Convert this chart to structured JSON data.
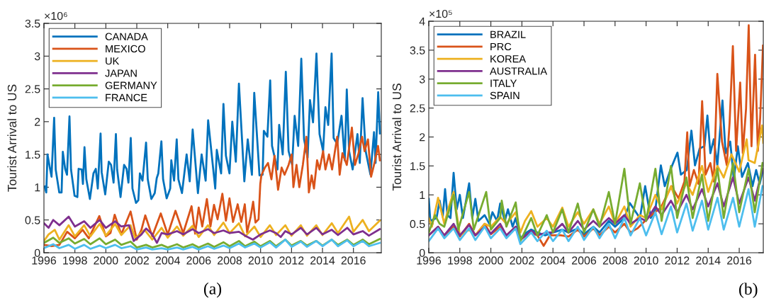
{
  "chart_data": [
    {
      "type": "line",
      "ylabel": "Tourist Arrival to US",
      "annotations": [
        "×10⁶",
        "(a)"
      ],
      "legend": "top left",
      "grid": false,
      "xlim": [
        1996,
        2017.8
      ],
      "xticks": [
        1996,
        1998,
        2000,
        2002,
        2004,
        2006,
        2008,
        2010,
        2012,
        2014,
        2016
      ],
      "ylim": [
        0,
        3.5
      ],
      "yticks": [
        0,
        0.5,
        1,
        1.5,
        2,
        2.5,
        3,
        3.5
      ],
      "series": [
        {
          "name": "CANADA",
          "color": "#0072bd",
          "x": [
            1996.05,
            1996.15,
            1996.23,
            1996.38,
            1996.49,
            1996.66,
            1996.76,
            1996.99,
            1997.14,
            1997.22,
            1997.37,
            1997.49,
            1997.65,
            1997.75,
            1997.98,
            1998.16,
            1998.24,
            1998.44,
            1998.52,
            1998.62,
            1998.74,
            1998.97,
            1999.2,
            1999.35,
            1999.48,
            1999.66,
            1999.73,
            1999.96,
            2000.19,
            2000.34,
            2000.5,
            2000.65,
            2000.73,
            2000.95,
            2001.18,
            2001.34,
            2001.46,
            2001.61,
            2001.72,
            2001.95,
            2002.1,
            2002.2,
            2002.37,
            2002.6,
            2002.71,
            2002.94,
            2003.16,
            2003.29,
            2003.39,
            2003.59,
            2003.7,
            2003.93,
            2004.16,
            2004.23,
            2004.41,
            2004.58,
            2004.69,
            2004.92,
            2005.22,
            2005.42,
            2005.61,
            2005.95,
            2006.19,
            2006.45,
            2006.61,
            2007.07,
            2007.17,
            2007.45,
            2007.6,
            2007.76,
            2007.99,
            2008.17,
            2008.4,
            2008.6,
            2008.95,
            2009.17,
            2009.44,
            2009.59,
            2009.93,
            2010.13,
            2010.21,
            2010.44,
            2010.62,
            2010.74,
            2011.09,
            2011.2,
            2011.43,
            2011.63,
            2011.81,
            2012.04,
            2012.2,
            2012.43,
            2012.63,
            2012.81,
            2013.04,
            2013.19,
            2013.39,
            2013.61,
            2013.81,
            2014.04,
            2014.19,
            2014.37,
            2014.59,
            2014.72,
            2014.95,
            2015.23,
            2015.44,
            2015.57,
            2015.72,
            2015.95,
            2016.26,
            2016.41,
            2016.59,
            2016.79,
            2017.1,
            2017.33,
            2017.43,
            2017.6,
            2017.71
          ],
          "values": [
            1.01,
            0.92,
            1.5,
            1.3,
            1.16,
            2.06,
            1.27,
            0.92,
            0.92,
            1.54,
            1.28,
            1.19,
            2.08,
            1.27,
            0.87,
            0.85,
            1.28,
            1.27,
            1.05,
            1.61,
            1.12,
            0.82,
            1.21,
            1.28,
            0.98,
            1.82,
            1.23,
            0.89,
            1.39,
            1.34,
            1.07,
            1.81,
            1.27,
            0.85,
            1.34,
            1.28,
            1.07,
            1.75,
            0.98,
            0.76,
            0.8,
            1.21,
            1.1,
            1.68,
            1.12,
            0.82,
            0.91,
            1.14,
            1.21,
            1.7,
            1.12,
            0.83,
            0.98,
            1.41,
            1.1,
            1.73,
            1.12,
            0.91,
            1.5,
            1.09,
            1.88,
            0.91,
            1.5,
            1.1,
            2.02,
            0.98,
            1.57,
            1.21,
            2.27,
            1.48,
            1.21,
            2.0,
            1.39,
            2.58,
            1.09,
            1.73,
            1.19,
            2.44,
            1.18,
            1.19,
            1.86,
            1.77,
            2.63,
            1.63,
            1.27,
            1.95,
            1.5,
            2.76,
            1.55,
            1.34,
            2.09,
            1.63,
            2.96,
            1.73,
            1.45,
            2.33,
            1.99,
            3.04,
            1.81,
            1.55,
            2.22,
            1.95,
            3.04,
            1.75,
            1.66,
            2.09,
            1.41,
            2.49,
            1.55,
            1.27,
            1.81,
            1.37,
            2.36,
            1.55,
            1.19,
            1.84,
            1.37,
            2.45,
            1.82
          ]
        },
        {
          "name": "MEXICO",
          "color": "#d95319",
          "x": [
            1996.0,
            1996.5,
            1997.0,
            1997.5,
            1998.0,
            1998.5,
            1998.9,
            1999.58,
            2000.0,
            2000.3,
            2000.57,
            2001.0,
            2001.6,
            2002.0,
            2002.3,
            2002.55,
            2003.0,
            2003.55,
            2004.0,
            2004.5,
            2005.0,
            2005.54,
            2005.77,
            2006.0,
            2006.23,
            2006.53,
            2006.76,
            2006.99,
            2007.22,
            2007.53,
            2007.76,
            2007.99,
            2008.22,
            2008.52,
            2008.75,
            2008.98,
            2009.13,
            2009.36,
            2009.52,
            2009.67,
            2009.87,
            2009.98,
            2010.05,
            2010.28,
            2010.48,
            2010.7,
            2010.9,
            2011.13,
            2011.36,
            2011.55,
            2011.81,
            2012.01,
            2012.12,
            2012.32,
            2012.5,
            2012.73,
            2012.96,
            2013.12,
            2013.3,
            2013.45,
            2013.65,
            2013.81,
            2014.04,
            2014.19,
            2014.42,
            2014.62,
            2014.95,
            2015.11,
            2015.29,
            2015.57,
            2015.9,
            2016.1,
            2016.33,
            2016.56,
            2016.72,
            2016.94,
            2017.14,
            2017.33,
            2017.59,
            2017.71
          ],
          "values": [
            0.12,
            0.1,
            0.12,
            0.32,
            0.22,
            0.35,
            0.22,
            0.56,
            0.25,
            0.3,
            0.58,
            0.28,
            0.63,
            0.2,
            0.35,
            0.57,
            0.25,
            0.6,
            0.28,
            0.64,
            0.3,
            0.71,
            0.29,
            0.69,
            0.4,
            0.82,
            0.4,
            0.73,
            0.51,
            0.9,
            0.49,
            0.83,
            0.47,
            0.74,
            0.47,
            0.74,
            0.31,
            0.55,
            0.78,
            0.46,
            0.51,
            1.05,
            1.18,
            1.3,
            1.37,
            1.12,
            1.48,
            0.96,
            1.3,
            1.19,
            1.34,
            1.5,
            1.0,
            1.34,
            1.0,
            1.34,
            1.77,
            0.92,
            1.18,
            0.98,
            1.41,
            1.27,
            1.55,
            1.27,
            1.5,
            1.27,
            1.77,
            1.19,
            1.52,
            1.34,
            1.91,
            1.34,
            1.52,
            1.77,
            1.55,
            1.73,
            1.16,
            1.34,
            1.63,
            1.41
          ]
        },
        {
          "name": "UK",
          "color": "#edb120",
          "x": [
            1996.0,
            1996.3,
            1996.7,
            1997.0,
            1997.6,
            1998.0,
            1998.6,
            1999.0,
            1999.6,
            2000.0,
            2000.6,
            2001.0,
            2001.6,
            2001.9,
            2002.5,
            2003.0,
            2003.6,
            2004.0,
            2004.6,
            2005.0,
            2005.6,
            2006.0,
            2006.6,
            2007.0,
            2007.6,
            2008.0,
            2008.6,
            2009.0,
            2009.6,
            2010.0,
            2010.6,
            2011.0,
            2011.6,
            2012.0,
            2012.6,
            2013.0,
            2013.6,
            2014.0,
            2014.6,
            2015.0,
            2015.72,
            2016.0,
            2016.6,
            2017.0,
            2017.7
          ],
          "values": [
            0.18,
            0.28,
            0.35,
            0.2,
            0.42,
            0.25,
            0.42,
            0.25,
            0.44,
            0.26,
            0.44,
            0.27,
            0.42,
            0.22,
            0.35,
            0.2,
            0.38,
            0.23,
            0.4,
            0.26,
            0.41,
            0.24,
            0.42,
            0.27,
            0.46,
            0.3,
            0.45,
            0.25,
            0.4,
            0.24,
            0.42,
            0.27,
            0.42,
            0.26,
            0.42,
            0.26,
            0.42,
            0.27,
            0.45,
            0.3,
            0.55,
            0.32,
            0.5,
            0.33,
            0.49
          ]
        },
        {
          "name": "JAPAN",
          "color": "#7e2f8e",
          "x": [
            1996.0,
            1996.3,
            1996.6,
            1997.0,
            1997.6,
            1998.0,
            1998.6,
            1999.0,
            1999.6,
            2000.0,
            2000.6,
            2001.0,
            2001.5,
            2001.8,
            2002.3,
            2002.6,
            2003.0,
            2003.3,
            2003.6,
            2004.0,
            2004.6,
            2005.0,
            2005.6,
            2006.0,
            2006.6,
            2007.0,
            2007.6,
            2008.0,
            2008.6,
            2009.0,
            2009.5,
            2010.0,
            2010.6,
            2011.0,
            2011.3,
            2011.6,
            2012.0,
            2012.6,
            2013.0,
            2013.6,
            2014.0,
            2014.6,
            2015.0,
            2015.6,
            2016.0,
            2016.6,
            2017.0,
            2017.7
          ],
          "values": [
            0.45,
            0.38,
            0.5,
            0.42,
            0.55,
            0.4,
            0.48,
            0.38,
            0.5,
            0.38,
            0.48,
            0.4,
            0.42,
            0.18,
            0.28,
            0.37,
            0.28,
            0.15,
            0.3,
            0.28,
            0.33,
            0.28,
            0.36,
            0.3,
            0.36,
            0.3,
            0.34,
            0.3,
            0.32,
            0.26,
            0.2,
            0.28,
            0.34,
            0.3,
            0.24,
            0.33,
            0.28,
            0.38,
            0.28,
            0.38,
            0.28,
            0.35,
            0.27,
            0.38,
            0.28,
            0.33,
            0.26,
            0.36
          ]
        },
        {
          "name": "GERMANY",
          "color": "#77ac30",
          "x": [
            1996.0,
            1996.6,
            1997.0,
            1997.6,
            1998.0,
            1998.6,
            1999.0,
            1999.6,
            2000.0,
            2000.6,
            2001.0,
            2001.6,
            2002.0,
            2002.6,
            2003.0,
            2003.6,
            2004.0,
            2004.6,
            2005.0,
            2005.6,
            2006.0,
            2006.6,
            2007.0,
            2007.6,
            2008.0,
            2008.6,
            2009.0,
            2009.6,
            2010.0,
            2010.6,
            2011.0,
            2011.6,
            2012.0,
            2012.6,
            2013.0,
            2013.6,
            2014.0,
            2014.6,
            2015.0,
            2015.6,
            2016.0,
            2016.6,
            2017.0,
            2017.7
          ],
          "values": [
            0.15,
            0.23,
            0.15,
            0.22,
            0.14,
            0.21,
            0.13,
            0.22,
            0.13,
            0.2,
            0.12,
            0.17,
            0.08,
            0.12,
            0.08,
            0.12,
            0.08,
            0.13,
            0.08,
            0.13,
            0.08,
            0.14,
            0.09,
            0.16,
            0.1,
            0.18,
            0.1,
            0.17,
            0.1,
            0.18,
            0.1,
            0.2,
            0.11,
            0.18,
            0.11,
            0.18,
            0.11,
            0.2,
            0.12,
            0.2,
            0.12,
            0.2,
            0.13,
            0.21
          ]
        },
        {
          "name": "FRANCE",
          "color": "#4dbeee",
          "x": [
            1996.0,
            1996.6,
            1997.0,
            1997.6,
            1998.0,
            1998.6,
            1999.0,
            1999.6,
            2000.0,
            2000.6,
            2001.0,
            2001.6,
            2002.0,
            2002.6,
            2003.0,
            2003.6,
            2004.0,
            2004.6,
            2005.0,
            2005.6,
            2006.0,
            2006.6,
            2007.0,
            2007.6,
            2008.0,
            2008.6,
            2009.0,
            2009.6,
            2010.0,
            2010.6,
            2011.0,
            2011.6,
            2012.0,
            2012.6,
            2013.0,
            2013.6,
            2014.0,
            2014.6,
            2015.0,
            2015.6,
            2016.0,
            2016.6,
            2017.0,
            2017.7
          ],
          "values": [
            0.07,
            0.13,
            0.07,
            0.12,
            0.06,
            0.12,
            0.06,
            0.11,
            0.07,
            0.12,
            0.07,
            0.1,
            0.05,
            0.08,
            0.05,
            0.07,
            0.05,
            0.08,
            0.05,
            0.09,
            0.05,
            0.1,
            0.06,
            0.11,
            0.07,
            0.14,
            0.08,
            0.14,
            0.08,
            0.16,
            0.08,
            0.2,
            0.09,
            0.17,
            0.09,
            0.18,
            0.1,
            0.2,
            0.1,
            0.19,
            0.1,
            0.18,
            0.1,
            0.15
          ]
        }
      ]
    },
    {
      "type": "line",
      "ylabel": "Tourist Arrival to US",
      "annotations": [
        "×10⁵",
        "(b)"
      ],
      "legend": "top left",
      "grid": false,
      "xlim": [
        1996,
        2017.55
      ],
      "xticks": [
        1996,
        1998,
        2000,
        2002,
        2004,
        2006,
        2008,
        2010,
        2012,
        2014,
        2016
      ],
      "ylim": [
        0,
        4
      ],
      "yticks": [
        0,
        0.5,
        1,
        1.5,
        2,
        2.5,
        3,
        3.5,
        4
      ],
      "series": [
        {
          "name": "BRAZIL",
          "color": "#0072bd",
          "x": [
            1996.0,
            1996.1,
            1996.5,
            1996.7,
            1996.9,
            1997.05,
            1997.2,
            1997.4,
            1997.6,
            1997.8,
            1998.0,
            1998.2,
            1998.6,
            1998.8,
            1999.0,
            1999.2,
            1999.6,
            1999.9,
            2000.1,
            2000.4,
            2000.6,
            2000.9,
            2001.1,
            2001.4,
            2001.6,
            2001.9,
            2002.3,
            2002.6,
            2003.0,
            2003.5,
            2004.0,
            2004.6,
            2005.0,
            2005.6,
            2006.0,
            2006.6,
            2007.0,
            2007.6,
            2008.0,
            2008.6,
            2008.95,
            2009.6,
            2009.94,
            2010.3,
            2010.6,
            2010.95,
            2011.2,
            2011.56,
            2012.02,
            2012.24,
            2012.62,
            2012.92,
            2013.15,
            2013.45,
            2013.76,
            2013.95,
            2014.14,
            2014.36,
            2014.59,
            2014.92,
            2015.12,
            2015.42,
            2015.65,
            2015.91,
            2016.18,
            2016.56,
            2016.86,
            2017.09,
            2017.32,
            2017.53
          ],
          "values": [
            0.93,
            0.55,
            0.6,
            0.9,
            0.62,
            1.1,
            0.65,
            0.6,
            1.38,
            0.75,
            1.0,
            0.6,
            1.2,
            0.6,
            0.93,
            0.55,
            0.65,
            0.5,
            0.7,
            0.55,
            0.85,
            0.55,
            0.75,
            0.45,
            0.6,
            0.25,
            0.35,
            0.4,
            0.35,
            0.3,
            0.35,
            0.4,
            0.35,
            0.42,
            0.32,
            0.45,
            0.35,
            0.55,
            0.45,
            0.6,
            0.86,
            0.6,
            1.15,
            0.6,
            0.75,
            1.51,
            1.15,
            1.43,
            1.73,
            1.35,
            1.43,
            2.11,
            1.51,
            1.8,
            1.84,
            2.37,
            1.72,
            1.96,
            1.51,
            2.63,
            1.72,
            1.92,
            1.27,
            1.84,
            1.31,
            1.55,
            1.15,
            1.43,
            1.19,
            1.43
          ]
        },
        {
          "name": "PRC",
          "color": "#d95319",
          "x": [
            1996.0,
            1996.6,
            1997.0,
            1997.6,
            1998.0,
            1998.6,
            1999.0,
            1999.6,
            2000.0,
            2000.6,
            2001.0,
            2001.6,
            2001.9,
            2002.5,
            2003.0,
            2003.4,
            2003.8,
            2004.5,
            2005.0,
            2005.6,
            2006.0,
            2006.6,
            2007.0,
            2007.6,
            2008.0,
            2008.6,
            2009.0,
            2009.44,
            2010.2,
            2010.95,
            2011.64,
            2012.09,
            2012.47,
            2012.65,
            2012.8,
            2013.08,
            2013.38,
            2013.61,
            2013.83,
            2014.14,
            2014.36,
            2014.59,
            2014.89,
            2015.2,
            2015.38,
            2015.59,
            2015.8,
            2016.06,
            2016.23,
            2016.44,
            2016.61,
            2016.79,
            2017.02,
            2017.2,
            2017.35,
            2017.53
          ],
          "values": [
            0.3,
            0.45,
            0.3,
            0.45,
            0.28,
            0.5,
            0.3,
            0.5,
            0.32,
            0.45,
            0.3,
            0.45,
            0.22,
            0.35,
            0.3,
            0.12,
            0.3,
            0.3,
            0.28,
            0.4,
            0.28,
            0.42,
            0.3,
            0.45,
            0.35,
            0.5,
            0.35,
            0.42,
            0.62,
            0.78,
            1.15,
            0.94,
            1.23,
            2.08,
            1.15,
            1.43,
            1.19,
            2.62,
            1.35,
            1.55,
            1.23,
            3.09,
            1.92,
            1.51,
            2.25,
            3.57,
            1.76,
            2.94,
            1.72,
            2.49,
            3.93,
            1.84,
            3.42,
            1.76,
            2.33,
            3.58
          ]
        },
        {
          "name": "KOREA",
          "color": "#edb120",
          "x": [
            1996.0,
            1996.2,
            1996.6,
            1997.0,
            1997.3,
            1997.6,
            1998.0,
            1998.6,
            1999.0,
            1999.6,
            2000.0,
            2000.6,
            2001.0,
            2001.6,
            2001.9,
            2002.2,
            2002.6,
            2003.0,
            2003.6,
            2004.0,
            2004.6,
            2005.0,
            2005.6,
            2006.0,
            2006.6,
            2007.0,
            2007.6,
            2008.0,
            2008.6,
            2009.0,
            2009.6,
            2010.0,
            2010.6,
            2011.0,
            2011.6,
            2012.0,
            2012.6,
            2013.0,
            2013.6,
            2014.0,
            2014.6,
            2015.0,
            2015.5,
            2016.0,
            2016.48,
            2016.6,
            2017.0,
            2017.47,
            2017.55
          ],
          "values": [
            0.6,
            0.45,
            0.95,
            0.5,
            0.8,
            1.05,
            0.3,
            0.4,
            0.3,
            0.5,
            0.45,
            0.62,
            0.5,
            0.7,
            0.35,
            0.55,
            0.72,
            0.45,
            0.6,
            0.45,
            0.78,
            0.45,
            0.7,
            0.5,
            0.75,
            0.5,
            0.8,
            0.5,
            0.8,
            0.45,
            0.65,
            0.6,
            1.0,
            0.75,
            1.15,
            0.85,
            1.2,
            1.0,
            1.5,
            1.05,
            1.5,
            1.3,
            1.7,
            1.4,
            1.96,
            1.6,
            1.55,
            2.2,
            1.9
          ]
        },
        {
          "name": "AUSTRALIA",
          "color": "#7e2f8e",
          "x": [
            1996.0,
            1996.6,
            1997.0,
            1997.6,
            1998.0,
            1998.6,
            1999.0,
            1999.6,
            2000.0,
            2000.6,
            2001.0,
            2001.6,
            2001.9,
            2002.6,
            2003.0,
            2003.6,
            2004.0,
            2004.6,
            2005.0,
            2005.6,
            2006.0,
            2006.6,
            2007.0,
            2007.6,
            2008.0,
            2008.6,
            2009.0,
            2009.6,
            2010.0,
            2010.6,
            2011.0,
            2011.6,
            2012.0,
            2012.6,
            2013.0,
            2013.6,
            2014.0,
            2014.6,
            2015.0,
            2015.6,
            2016.0,
            2016.6,
            2017.0,
            2017.5
          ],
          "values": [
            0.3,
            0.45,
            0.3,
            0.5,
            0.3,
            0.48,
            0.3,
            0.45,
            0.33,
            0.5,
            0.3,
            0.45,
            0.22,
            0.38,
            0.3,
            0.35,
            0.35,
            0.5,
            0.35,
            0.55,
            0.4,
            0.55,
            0.45,
            0.6,
            0.5,
            0.65,
            0.5,
            0.6,
            0.55,
            0.8,
            0.65,
            0.9,
            0.7,
            1.0,
            0.75,
            1.1,
            0.8,
            1.2,
            0.8,
            1.3,
            0.85,
            1.3,
            0.9,
            1.45
          ]
        },
        {
          "name": "ITALY",
          "color": "#77ac30",
          "x": [
            1996.0,
            1996.4,
            1996.7,
            1997.0,
            1997.6,
            1997.9,
            1998.6,
            1998.9,
            1999.7,
            2000.0,
            2000.6,
            2000.7,
            2001.0,
            2001.6,
            2001.9,
            2002.6,
            2003.0,
            2003.6,
            2004.0,
            2004.6,
            2005.0,
            2005.6,
            2006.0,
            2006.6,
            2007.0,
            2007.6,
            2008.0,
            2008.6,
            2009.0,
            2009.6,
            2010.0,
            2010.6,
            2011.0,
            2011.6,
            2012.0,
            2012.6,
            2013.0,
            2013.6,
            2014.0,
            2014.6,
            2015.0,
            2015.6,
            2016.0,
            2016.6,
            2017.0,
            2017.5
          ],
          "values": [
            0.35,
            0.65,
            0.5,
            0.45,
            1.0,
            0.4,
            1.05,
            0.4,
            1.05,
            0.4,
            0.6,
            0.9,
            0.45,
            0.87,
            0.2,
            0.6,
            0.3,
            0.65,
            0.35,
            0.75,
            0.35,
            0.85,
            0.35,
            0.75,
            0.45,
            1.05,
            0.5,
            1.45,
            0.5,
            1.2,
            0.55,
            1.45,
            0.55,
            1.5,
            0.6,
            1.3,
            0.6,
            1.35,
            0.55,
            1.45,
            0.6,
            1.55,
            0.7,
            1.45,
            0.7,
            1.55
          ]
        },
        {
          "name": "SPAIN",
          "color": "#4dbeee",
          "x": [
            1996.0,
            1996.6,
            1997.0,
            1997.6,
            1998.0,
            1998.6,
            1999.0,
            1999.6,
            2000.0,
            2000.6,
            2001.0,
            2001.6,
            2001.9,
            2002.6,
            2003.0,
            2003.6,
            2004.0,
            2004.6,
            2005.0,
            2005.6,
            2006.0,
            2006.6,
            2007.0,
            2007.6,
            2008.0,
            2008.6,
            2009.0,
            2009.6,
            2010.0,
            2010.6,
            2011.0,
            2011.6,
            2012.0,
            2012.6,
            2013.0,
            2013.6,
            2014.0,
            2014.6,
            2015.0,
            2015.6,
            2016.0,
            2016.6,
            2017.0,
            2017.5
          ],
          "values": [
            0.2,
            0.42,
            0.25,
            0.42,
            0.22,
            0.42,
            0.22,
            0.45,
            0.25,
            0.42,
            0.25,
            0.42,
            0.15,
            0.35,
            0.2,
            0.38,
            0.2,
            0.4,
            0.2,
            0.45,
            0.22,
            0.45,
            0.25,
            0.5,
            0.25,
            0.6,
            0.3,
            0.6,
            0.3,
            0.7,
            0.32,
            0.8,
            0.35,
            0.85,
            0.38,
            0.9,
            0.4,
            0.95,
            0.4,
            0.95,
            0.45,
            1.1,
            0.45,
            1.15
          ]
        }
      ]
    }
  ]
}
